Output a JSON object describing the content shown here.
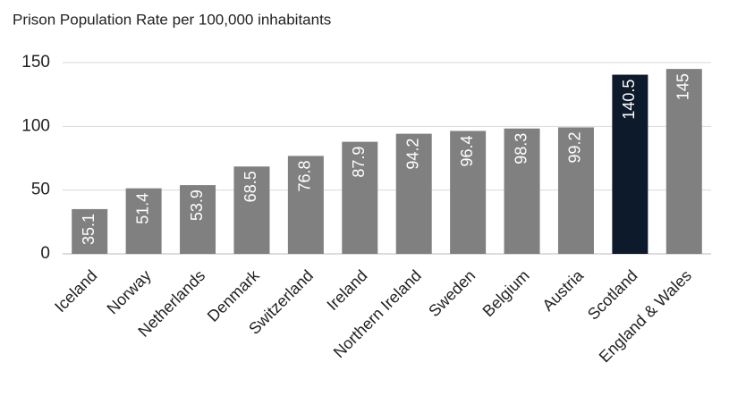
{
  "chart_data": {
    "type": "bar",
    "title": "Prison Population Rate per 100,000 inhabitants",
    "categories": [
      "Iceland",
      "Norway",
      "Netherlands",
      "Denmark",
      "Switzerland",
      "Ireland",
      "Northern Ireland",
      "Sweden",
      "Belgium",
      "Austria",
      "Scotland",
      "England & Wales"
    ],
    "values": [
      35.1,
      51.4,
      53.9,
      68.5,
      76.8,
      87.9,
      94.2,
      96.4,
      98.3,
      99.2,
      140.5,
      145
    ],
    "colors": [
      "#808080",
      "#808080",
      "#808080",
      "#808080",
      "#808080",
      "#808080",
      "#808080",
      "#808080",
      "#808080",
      "#808080",
      "#0d1a2b",
      "#808080"
    ],
    "ylim": [
      0,
      150
    ],
    "yticks": [
      0,
      50,
      100,
      150
    ],
    "grid": true
  }
}
